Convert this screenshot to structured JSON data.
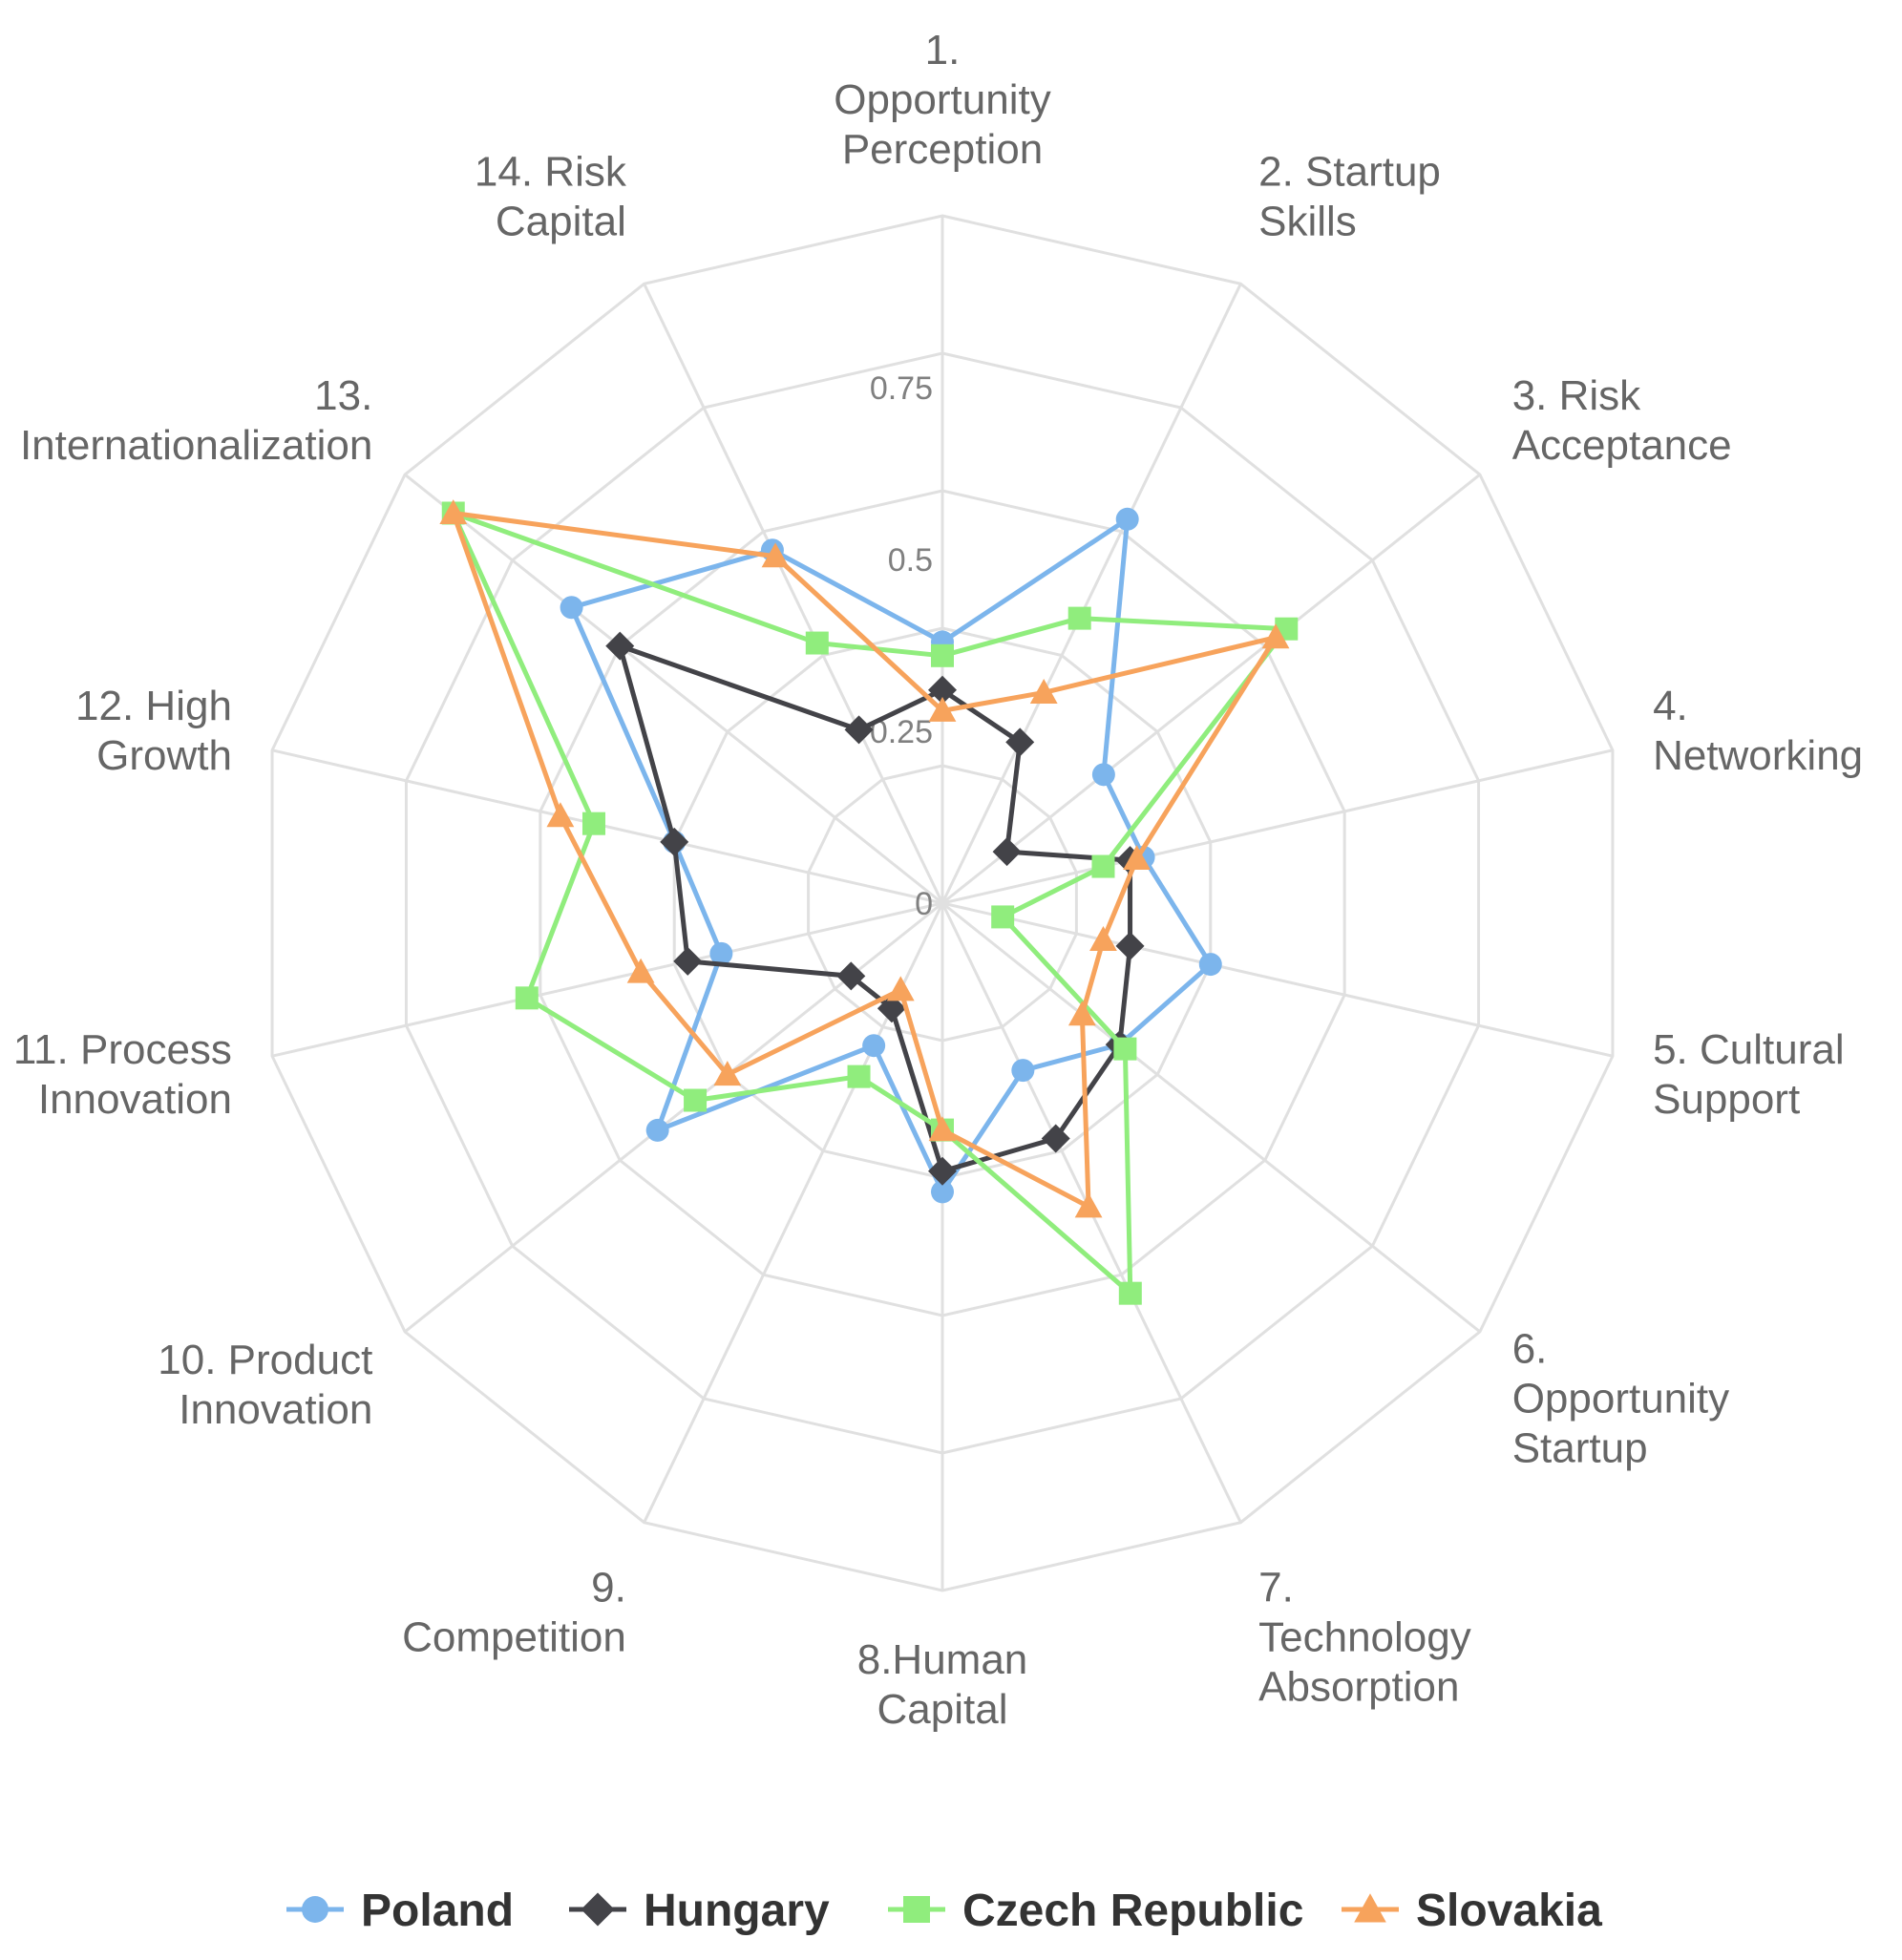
{
  "chart_data": {
    "type": "radar",
    "title": "",
    "axes": [
      [
        "1.",
        "Opportunity",
        "Perception"
      ],
      [
        "2. Startup",
        "Skills"
      ],
      [
        "3. Risk",
        "Acceptance"
      ],
      [
        "4.",
        "Networking"
      ],
      [
        "5. Cultural",
        "Support"
      ],
      [
        "6.",
        "Opportunity",
        "Startup"
      ],
      [
        "7.",
        "Technology",
        "Absorption"
      ],
      [
        "8.Human",
        "Capital"
      ],
      [
        "9.",
        "Competition"
      ],
      [
        "10. Product",
        "Innovation"
      ],
      [
        "11. Process",
        "Innovation"
      ],
      [
        "12. High",
        "Growth"
      ],
      [
        "13.",
        "Internationalization"
      ],
      [
        "14. Risk",
        "Capital"
      ]
    ],
    "rmax": 1.0,
    "ticks": [
      {
        "value": 0,
        "label": "0"
      },
      {
        "value": 0.25,
        "label": "0.25"
      },
      {
        "value": 0.5,
        "label": "0.5"
      },
      {
        "value": 0.75,
        "label": "0.75"
      }
    ],
    "grid_levels": [
      0.2,
      0.4,
      0.6,
      0.8,
      1.0
    ],
    "legend_position": "bottom",
    "series": [
      {
        "name": "Poland",
        "color": "#7cb5ec",
        "marker": "circle",
        "values": [
          0.38,
          0.62,
          0.3,
          0.3,
          0.4,
          0.33,
          0.27,
          0.42,
          0.23,
          0.53,
          0.33,
          0.4,
          0.69,
          0.57
        ]
      },
      {
        "name": "Hungary",
        "color": "#434348",
        "marker": "diamond",
        "values": [
          0.31,
          0.26,
          0.12,
          0.28,
          0.28,
          0.33,
          0.38,
          0.39,
          0.17,
          0.17,
          0.38,
          0.4,
          0.6,
          0.28
        ]
      },
      {
        "name": "Czech Republic",
        "color": "#90ed7d",
        "marker": "square",
        "values": [
          0.36,
          0.46,
          0.64,
          0.24,
          0.09,
          0.34,
          0.63,
          0.33,
          0.28,
          0.46,
          0.62,
          0.52,
          0.91,
          0.42
        ]
      },
      {
        "name": "Slovakia",
        "color": "#f7a35c",
        "marker": "triangle",
        "values": [
          0.28,
          0.34,
          0.62,
          0.29,
          0.24,
          0.26,
          0.49,
          0.33,
          0.14,
          0.4,
          0.45,
          0.57,
          0.91,
          0.56
        ]
      }
    ]
  }
}
